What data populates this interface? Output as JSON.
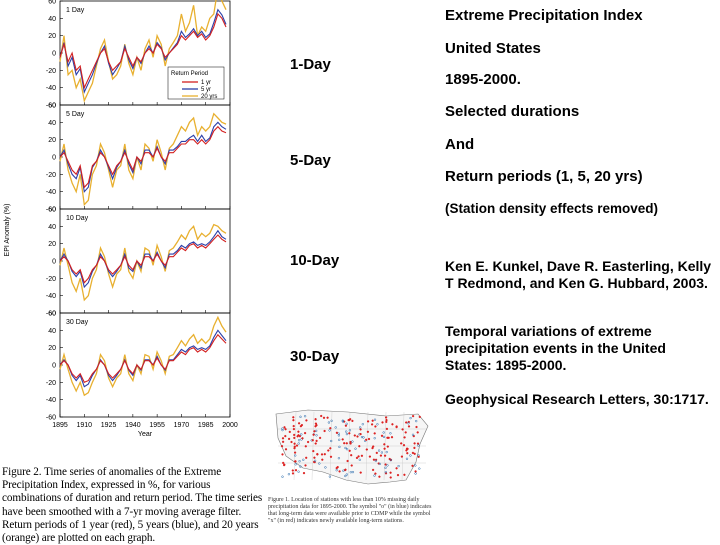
{
  "panels": [
    {
      "name": "1-Day",
      "label": "1 Day",
      "y1": [
        -5,
        10,
        -10,
        0,
        -20,
        -15,
        -40,
        -30,
        -20,
        -10,
        0,
        5,
        -10,
        -20,
        -15,
        -10,
        5,
        -5,
        -15,
        -5,
        -10,
        0,
        5,
        0,
        10,
        5,
        -5,
        0,
        5,
        10,
        20,
        15,
        20,
        25,
        18,
        22,
        15,
        20,
        30,
        45,
        40,
        30
      ],
      "y5": [
        -5,
        12,
        -15,
        -5,
        -25,
        -18,
        -45,
        -35,
        -25,
        -12,
        0,
        8,
        -12,
        -25,
        -18,
        -10,
        8,
        -8,
        -18,
        -5,
        -12,
        0,
        8,
        0,
        12,
        6,
        -8,
        0,
        6,
        12,
        25,
        18,
        22,
        28,
        20,
        25,
        18,
        22,
        35,
        50,
        44,
        33
      ],
      "y20": [
        -10,
        20,
        -25,
        -20,
        -40,
        -30,
        -55,
        -45,
        -35,
        -15,
        5,
        15,
        -10,
        -30,
        -25,
        -15,
        10,
        -12,
        -25,
        -5,
        -20,
        5,
        15,
        -5,
        20,
        10,
        -15,
        5,
        12,
        20,
        45,
        25,
        35,
        55,
        20,
        30,
        25,
        40,
        45,
        75,
        60,
        50
      ]
    },
    {
      "name": "5-Day",
      "label": "5 Day",
      "y1": [
        0,
        5,
        -5,
        -15,
        -20,
        -10,
        -35,
        -30,
        -10,
        -5,
        5,
        0,
        -10,
        -20,
        -10,
        -5,
        5,
        -5,
        -15,
        0,
        -5,
        5,
        5,
        0,
        10,
        0,
        -5,
        5,
        5,
        10,
        15,
        15,
        20,
        20,
        15,
        20,
        15,
        20,
        30,
        35,
        30,
        28
      ],
      "y5": [
        0,
        8,
        -8,
        -20,
        -25,
        -12,
        -40,
        -35,
        -12,
        -5,
        8,
        0,
        -12,
        -25,
        -12,
        -5,
        8,
        -8,
        -18,
        0,
        -8,
        8,
        8,
        0,
        12,
        0,
        -8,
        8,
        8,
        12,
        18,
        18,
        22,
        25,
        18,
        25,
        18,
        22,
        35,
        40,
        35,
        32
      ],
      "y20": [
        -5,
        15,
        -15,
        -30,
        -40,
        -20,
        -55,
        -50,
        -20,
        -10,
        15,
        5,
        -15,
        -35,
        -15,
        -10,
        15,
        -15,
        -25,
        0,
        -15,
        15,
        10,
        -5,
        20,
        5,
        -15,
        10,
        15,
        25,
        35,
        30,
        40,
        45,
        25,
        35,
        30,
        35,
        50,
        45,
        40,
        38
      ]
    },
    {
      "name": "10-Day",
      "label": "10 Day",
      "y1": [
        0,
        5,
        0,
        -10,
        -15,
        -10,
        -25,
        -20,
        -10,
        -5,
        5,
        0,
        -10,
        -15,
        -10,
        -5,
        5,
        -5,
        -10,
        0,
        -5,
        5,
        5,
        0,
        8,
        0,
        -5,
        5,
        5,
        10,
        15,
        12,
        18,
        20,
        15,
        18,
        15,
        20,
        25,
        30,
        25,
        22
      ],
      "y5": [
        0,
        8,
        0,
        -12,
        -18,
        -12,
        -30,
        -25,
        -12,
        -5,
        8,
        0,
        -12,
        -18,
        -12,
        -5,
        8,
        -8,
        -12,
        0,
        -8,
        8,
        8,
        0,
        10,
        0,
        -8,
        8,
        8,
        12,
        18,
        15,
        20,
        22,
        18,
        20,
        18,
        22,
        28,
        35,
        28,
        25
      ],
      "y20": [
        -5,
        15,
        -5,
        -25,
        -35,
        -20,
        -45,
        -40,
        -20,
        -10,
        15,
        5,
        -15,
        -30,
        -15,
        -10,
        15,
        -12,
        -20,
        0,
        -12,
        15,
        12,
        -5,
        18,
        5,
        -12,
        12,
        15,
        22,
        30,
        25,
        35,
        40,
        25,
        32,
        28,
        32,
        42,
        40,
        35,
        32
      ]
    },
    {
      "name": "30-Day",
      "label": "30 Day",
      "y1": [
        0,
        5,
        0,
        -10,
        -15,
        -10,
        -20,
        -18,
        -10,
        -5,
        5,
        0,
        -10,
        -15,
        -10,
        -5,
        5,
        -5,
        -10,
        0,
        -5,
        5,
        5,
        0,
        8,
        0,
        -5,
        5,
        5,
        10,
        15,
        12,
        18,
        20,
        15,
        18,
        15,
        20,
        28,
        35,
        30,
        25
      ],
      "y5": [
        0,
        6,
        0,
        -12,
        -18,
        -12,
        -25,
        -22,
        -12,
        -5,
        6,
        0,
        -12,
        -18,
        -12,
        -5,
        6,
        -6,
        -12,
        0,
        -6,
        6,
        6,
        0,
        10,
        0,
        -6,
        6,
        6,
        12,
        18,
        15,
        20,
        22,
        18,
        20,
        18,
        22,
        32,
        40,
        34,
        28
      ],
      "y20": [
        -5,
        12,
        -5,
        -20,
        -30,
        -20,
        -35,
        -32,
        -20,
        -10,
        12,
        5,
        -15,
        -25,
        -15,
        -10,
        12,
        -10,
        -18,
        0,
        -10,
        12,
        10,
        -5,
        15,
        5,
        -10,
        10,
        12,
        20,
        28,
        22,
        30,
        35,
        25,
        30,
        25,
        30,
        45,
        55,
        45,
        38
      ]
    }
  ],
  "chart_data": {
    "type": "line",
    "title": "",
    "xlabel": "Year",
    "ylabel": "EPI Anomaly (%)",
    "xlim": [
      1895,
      2000
    ],
    "ylim": [
      -60,
      60
    ],
    "x_ticks": [
      "1895",
      "1910",
      "1925",
      "1940",
      "1955",
      "1970",
      "1985",
      "2000"
    ],
    "y_ticks": [
      "60",
      "40",
      "20",
      "0",
      "-20",
      "-40",
      "-60"
    ],
    "legend_title": "Return Period",
    "legend_location": "lower-right of first panel",
    "series_names": [
      "1 yr",
      "5 yr",
      "20 yrs"
    ],
    "series_colors": [
      "#d32020",
      "#2b3fa8",
      "#e8b030"
    ],
    "years": [
      1895,
      1897.5,
      1900,
      1902.5,
      1905,
      1907.5,
      1910,
      1912.5,
      1915,
      1917.5,
      1920,
      1922.5,
      1925,
      1927.5,
      1930,
      1932.5,
      1935,
      1937.5,
      1940,
      1942.5,
      1945,
      1947.5,
      1950,
      1952.5,
      1955,
      1957.5,
      1960,
      1962.5,
      1965,
      1967.5,
      1970,
      1972.5,
      1975,
      1977.5,
      1980,
      1982.5,
      1985,
      1987.5,
      1990,
      1992.5,
      1995,
      1997.5
    ]
  },
  "caption": "Figure 2. Time series of anomalies of the Extreme Precipitation Index, expressed in %, for various combinations of duration and return period. The time series have been smoothed with a 7-yr moving average filter. Return periods of 1 year (red), 5 years (blue), and 20 years (orange) are plotted on each graph.",
  "durations": [
    "1-Day",
    "5-Day",
    "10-Day",
    "30-Day"
  ],
  "right_text": {
    "title": "Extreme Precipitation Index",
    "line2": "United States",
    "line3": "1895-2000.",
    "line4": "Selected durations",
    "line5": "And",
    "line6": "Return periods (1, 5, 20 yrs)",
    "line7": "(Station density effects removed)",
    "authors": "Ken E. Kunkel, Dave R. Easterling, Kelly T Redmond, and Ken G. Hubbard, 2003.",
    "paper_title": "Temporal variations of extreme precipitation events in the United States: 1895-2000.",
    "journal": "Geophysical Research Letters, 30:1717."
  },
  "map_caption": "Figure 1. Location of stations with less than 10% missing daily precipitation data for 1895-2000. The symbol \"o\" (in blue) indicates that long-term data were available prior to CDMP while the symbol \"x\" (in red) indicates newly available long-term stations."
}
